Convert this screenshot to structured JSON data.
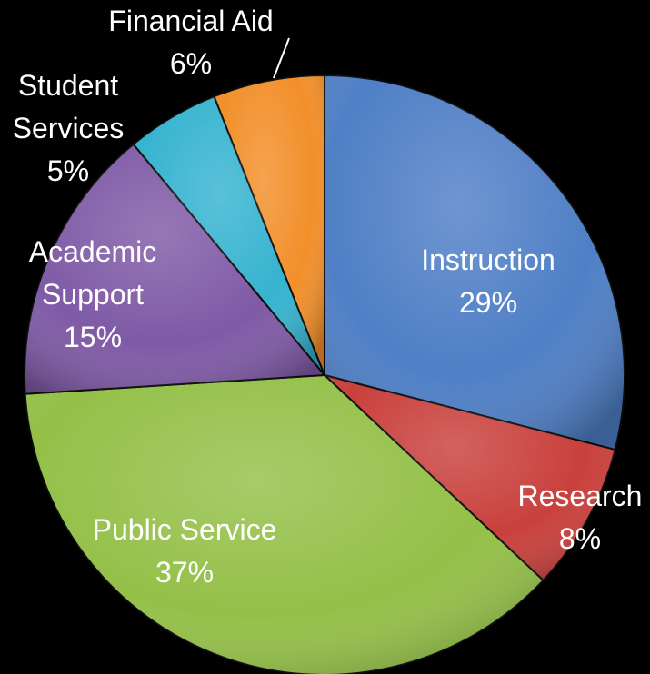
{
  "chart_data": {
    "type": "pie",
    "title": "",
    "slices": [
      {
        "name": "Instruction",
        "value": 29,
        "label": "29%",
        "color": "#4f7fc6"
      },
      {
        "name": "Research",
        "value": 8,
        "label": "8%",
        "color": "#c9403c"
      },
      {
        "name": "Public Service",
        "value": 37,
        "label": "37%",
        "color": "#94c048"
      },
      {
        "name": "Academic Support",
        "value": 15,
        "label": "15%",
        "color": "#7f5aa6"
      },
      {
        "name": "Student Services",
        "value": 5,
        "label": "5%",
        "color": "#36b3d0"
      },
      {
        "name": "Financial Aid",
        "value": 6,
        "label": "6%",
        "color": "#f28f2a"
      }
    ],
    "label_lines": [
      [
        "Instruction",
        "29%"
      ],
      [
        "Research",
        "8%"
      ],
      [
        "Public Service",
        "37%"
      ],
      [
        "Academic",
        "Support",
        "15%"
      ],
      [
        "Student",
        "Services",
        "5%"
      ],
      [
        "Financial Aid",
        "6%"
      ]
    ],
    "legend": "none"
  }
}
